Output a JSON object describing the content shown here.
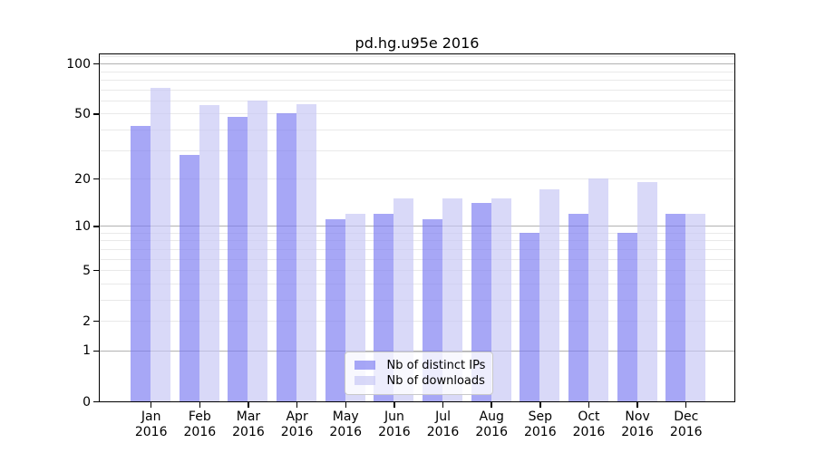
{
  "title": "pd.hg.u95e 2016",
  "chart_data": {
    "type": "bar",
    "title": "pd.hg.u95e 2016",
    "categories": [
      "Jan 2016",
      "Feb 2016",
      "Mar 2016",
      "Apr 2016",
      "May 2016",
      "Jun 2016",
      "Jul 2016",
      "Aug 2016",
      "Sep 2016",
      "Oct 2016",
      "Nov 2016",
      "Dec 2016"
    ],
    "series": [
      {
        "name": "Nb of distinct IPs",
        "color": "rgba(122,122,242,0.66)",
        "values": [
          42,
          28,
          48,
          50,
          11,
          12,
          11,
          14,
          9,
          12,
          9,
          12
        ]
      },
      {
        "name": "Nb of downloads",
        "color": "rgba(198,198,244,0.66)",
        "values": [
          71,
          56,
          60,
          57,
          12,
          15,
          15,
          15,
          17,
          20,
          19,
          12
        ]
      }
    ],
    "yscale": "log1p",
    "ytick_labels": [
      100,
      50,
      20,
      10,
      5,
      2,
      1,
      0
    ],
    "ylim": [
      0,
      115
    ],
    "grid": true,
    "legend_position": "bottom-center"
  },
  "colors": {
    "bar_ips": "rgba(122,122,242,0.66)",
    "bar_downloads": "rgba(198,198,244,0.66)",
    "grid_major": "#b2b2b2",
    "grid_minor": "#e9e9e9",
    "spine": "#000000",
    "legend_border": "#c9c9c9"
  }
}
